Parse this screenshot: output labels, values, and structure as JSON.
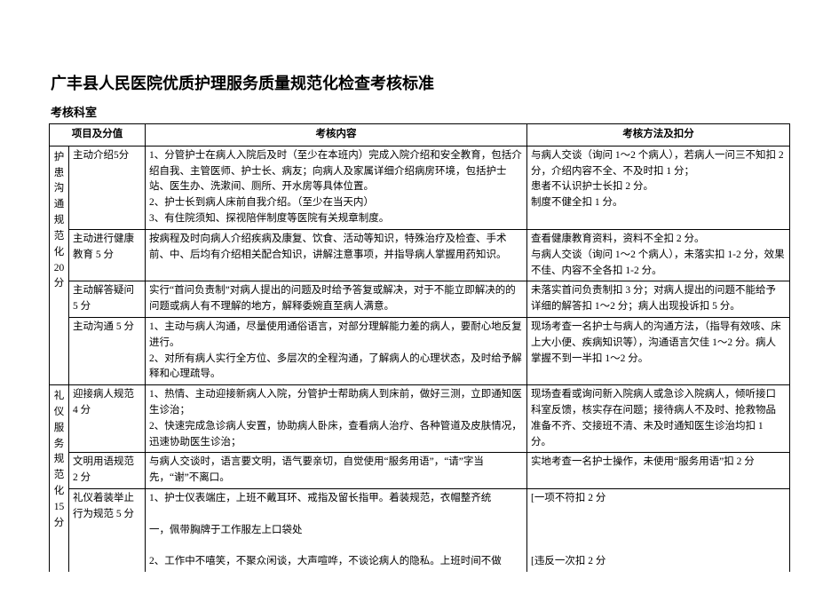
{
  "title": "广丰县人民医院优质护理服务质量规范化检查考核标准",
  "subtitle": "考核科室",
  "header": {
    "col12": "项目及分值",
    "col3": "考核内容",
    "col4": "考核方法及扣分"
  },
  "sections": [
    {
      "label": "护患沟通规范化",
      "score": "20",
      "unit": "分",
      "rows": [
        {
          "item": "主动介绍5分",
          "content": "1、分管护士在病人入院后及时（至少在本班内）完成入院介绍和安全教育，包括介绍自我、主管医师、护士长、病友；向病人及家属详细介绍病房环境，包括护士站、医生办、洗漱间、厕所、开水房等具体位置。\n2、护士长到病人床前自我介绍。（至少在当天内）\n3、有住院须知、探视陪伴制度等医院有关规章制度。",
          "method": "与病人交谈（询问 1～2 个病人），若病人一问三不知扣 2 分，介绍内容不全、不及时扣 1 分；\n患者不认识护士长扣 2 分。\n制度不健全扣 1 分。"
        },
        {
          "item": "主动进行健康教育 5 分",
          "content": "按病程及时向病人介绍疾病及康复、饮食、活动等知识，特殊治疗及检查、手术前、中、后均有介绍相关配合知识，讲解注意事项，并指导病人掌握用药知识。",
          "method": "查看健康教育资料，资料不全扣 2 分。\n与病人交谈（询问 1～2 个病人），未落实扣 1-2 分，效果不佳、内容不全各扣 1-2 分。"
        },
        {
          "item": "主动解答疑问 5 分",
          "content": "实行“首问负责制”对病人提出的问题及时给予答复或解决，对于不能立即解决的的问题或病人有不理解的地方，解释委婉直至病人满意。",
          "method": "未落实首问负责制扣 3 分；对病人提出的问题不能给予详细的解答扣 1～2 分；病人出现投诉扣 5 分。"
        },
        {
          "item": "主动沟通 5 分",
          "content": "1、主动与病人沟通，尽量使用通俗语言，对部分理解能力差的病人，要耐心地反复进行。\n2、对所有病人实行全方位、多层次的全程沟通，了解病人的心理状态，及时给予解释和心理疏导。",
          "method": "现场考查一名护士与病人的沟通方法，（指导有效咳、床上大小便、疾病知识等），沟通语言欠佳 1～2 分。病人掌握不到一半扣 1～2 分。"
        }
      ]
    },
    {
      "label": "礼仪服务规范化",
      "score": "15",
      "unit": "分",
      "rows": [
        {
          "item": "迎接病人规范 4 分",
          "content": "1、热情、主动迎接新病人入院，分管护士帮助病人到床前，做好三测，立即通知医生诊治；\n2、快速完成急诊病人安置，协助病人卧床，查看病人治疗、各种管道及皮肤情况，迅速协助医生诊治；",
          "method": "现场查看或询问新入院病人或急诊入院病人，倾听接口科室反馈，核实存在问题；接待病人不及时、抢救物品准备不齐、交接班不清、未及时通知医生诊治均扣 1 分。"
        },
        {
          "item": "文明用语规范 2 分",
          "content": "与病人交谈时，语言要文明，语气要亲切，自觉使用“服务用语”，“请”字当先，“谢”不离口。",
          "method": "实地考查一名护士操作，未使用“服务用语”扣 2 分"
        },
        {
          "item": "礼仪着装举止行为规范 5 分",
          "content": "1、护士仪表端庄，上班不戴耳环、戒指及留长指甲。着装规范，衣帽整齐统\n\n一，佩带胸牌于工作服左上口袋处\n\n2、工作中不嘻笑，不聚众闲谈，大声喧哗，不谈论病人的隐私。上班时间不做",
          "method": "[一项不符扣 2 分\n\n\n\n[违反一次扣 2 分"
        }
      ]
    }
  ]
}
